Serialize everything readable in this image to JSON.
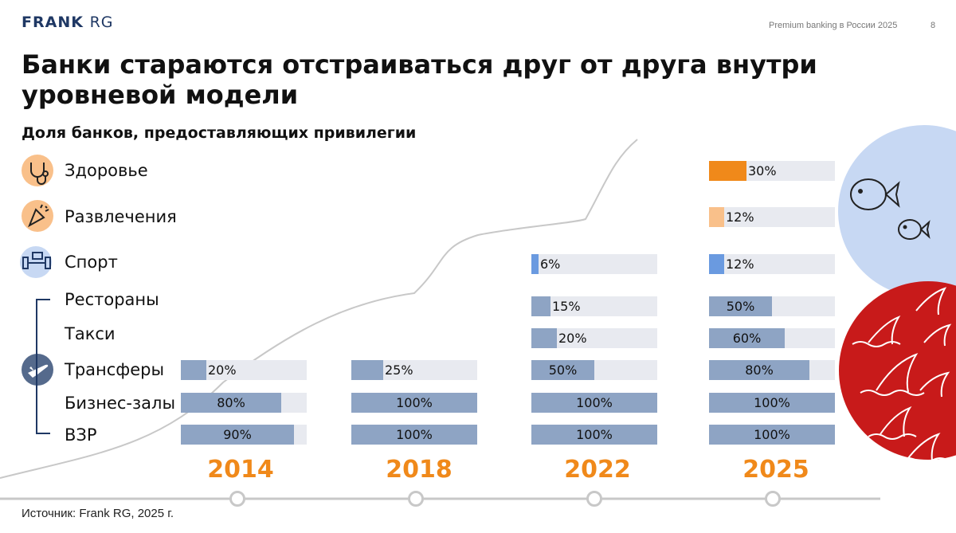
{
  "header": {
    "logo_main": "FRANK",
    "logo_sub": "RG",
    "report": "Premium banking в России 2025",
    "page": "8"
  },
  "title": "Банки стараются отстраиваться друг от друга внутри уровневой модели",
  "footer": {
    "source": "Источник: Frank RG, 2025 г."
  },
  "icons": [
    "stethoscope-icon",
    "party-popper-icon",
    "dumbbell-icon",
    "airplane-icon",
    "fish-icon",
    "shark-fin-icon"
  ],
  "colors": {
    "accent": "#f0891a",
    "health": "#f0891a",
    "entertainment": "#f9c08a",
    "sport": "#6a9ae0",
    "travel": "#8ea4c4",
    "bar_bg": "#e8eaf0",
    "blue_circle": "#c7d8f3",
    "red_circle": "#c81a1a"
  },
  "chart_data": {
    "type": "bar",
    "title": "Доля банков, предоставляющих привилегии",
    "categories": [
      "Здоровье",
      "Развлечения",
      "Спорт",
      "Рестораны",
      "Такси",
      "Трансферы",
      "Бизнес-залы",
      "ВЗР"
    ],
    "years": [
      "2014",
      "2018",
      "2022",
      "2025"
    ],
    "series": [
      {
        "name": "2014",
        "values": [
          null,
          null,
          null,
          null,
          null,
          20,
          80,
          90
        ]
      },
      {
        "name": "2018",
        "values": [
          null,
          null,
          null,
          null,
          null,
          25,
          100,
          100
        ]
      },
      {
        "name": "2022",
        "values": [
          null,
          null,
          6,
          15,
          20,
          50,
          100,
          100
        ]
      },
      {
        "name": "2025",
        "values": [
          30,
          12,
          12,
          50,
          60,
          80,
          100,
          100
        ]
      }
    ],
    "unit": "%",
    "xlim": [
      0,
      100
    ]
  }
}
